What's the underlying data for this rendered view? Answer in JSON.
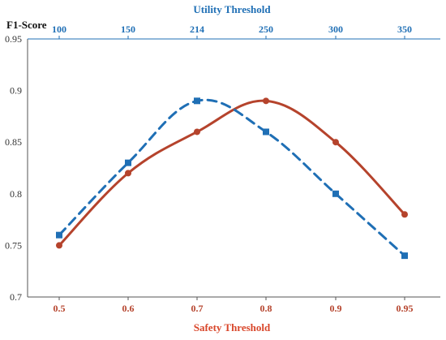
{
  "chart_data": {
    "type": "line",
    "title": "",
    "ylabel": "F1-Score",
    "xlabel_bottom": "Safety Threshold",
    "xlabel_top": "Utility Threshold",
    "categories_bottom": [
      "0.5",
      "0.6",
      "0.7",
      "0.8",
      "0.9",
      "0.95"
    ],
    "categories_top": [
      "100",
      "150",
      "214",
      "250",
      "300",
      "350"
    ],
    "ylim": [
      0.7,
      0.95
    ],
    "yticks": [
      "0.7",
      "0.75",
      "0.8",
      "0.85",
      "0.9",
      "0.95"
    ],
    "grid": false,
    "series": [
      {
        "axis": "bottom",
        "style": "solid",
        "marker": "circle",
        "color": "#b5432c",
        "values": [
          0.75,
          0.82,
          0.86,
          0.89,
          0.85,
          0.78
        ]
      },
      {
        "axis": "top",
        "style": "dashed",
        "marker": "square",
        "color": "#1f6fb5",
        "values": [
          0.76,
          0.83,
          0.89,
          0.86,
          0.8,
          0.74
        ]
      }
    ]
  }
}
